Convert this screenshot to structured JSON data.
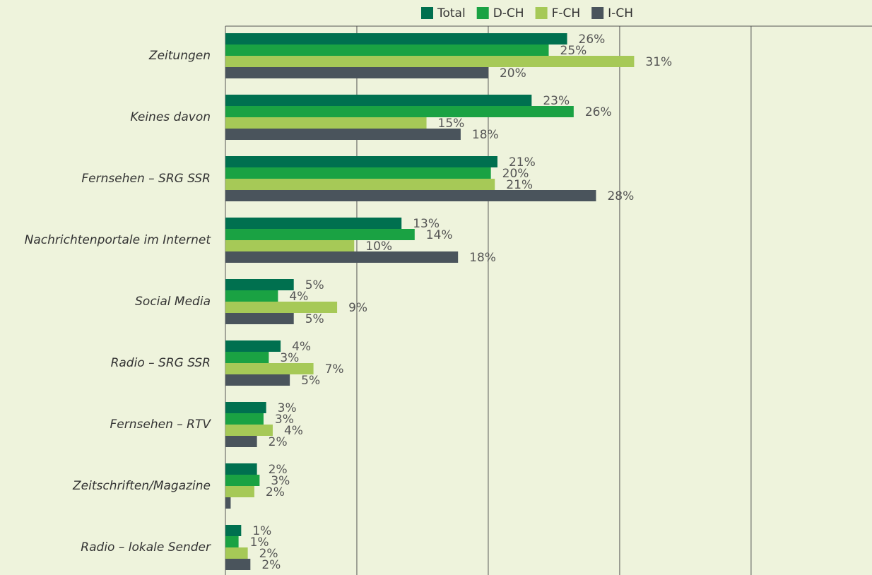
{
  "chart_data": {
    "type": "bar",
    "orientation": "horizontal",
    "categories": [
      "Zeitungen",
      "Keines davon",
      "Fernsehen – SRG SSR",
      "Nachrichtenportale im Internet",
      "Social Media",
      "Radio – SRG SSR",
      "Fernsehen – RTV",
      "Zeitschriften/Magazine",
      "Radio – lokale Sender"
    ],
    "series": [
      {
        "name": "Total",
        "color": "#00704f",
        "values": [
          26.0,
          23.3,
          20.7,
          13.4,
          5.2,
          4.2,
          3.1,
          2.4,
          1.2
        ],
        "value_labels": [
          "26%",
          "23%",
          "21%",
          "13%",
          "5%",
          "4%",
          "3%",
          "2%",
          "1%"
        ]
      },
      {
        "name": "D-CH",
        "color": "#1aa243",
        "values": [
          24.6,
          26.5,
          20.2,
          14.4,
          4.0,
          3.3,
          2.9,
          2.6,
          1.0
        ],
        "value_labels": [
          "25%",
          "26%",
          "20%",
          "14%",
          "4%",
          "3%",
          "3%",
          "3%",
          "1%"
        ]
      },
      {
        "name": "F-CH",
        "color": "#a6c957",
        "values": [
          31.1,
          15.3,
          20.5,
          9.8,
          8.5,
          6.7,
          3.6,
          2.2,
          1.7
        ],
        "value_labels": [
          "31%",
          "15%",
          "21%",
          "10%",
          "9%",
          "7%",
          "4%",
          "2%",
          "2%"
        ]
      },
      {
        "name": "I-CH",
        "color": "#4a545c",
        "values": [
          20.0,
          17.9,
          28.2,
          17.7,
          5.2,
          4.9,
          2.4,
          0.4,
          1.9
        ],
        "value_labels": [
          "20%",
          "18%",
          "28%",
          "18%",
          "5%",
          "5%",
          "2%",
          null,
          "2%"
        ]
      }
    ],
    "xlim": [
      0,
      49.2
    ],
    "xticks": [
      0,
      10,
      20,
      30,
      40
    ],
    "grid": true
  }
}
